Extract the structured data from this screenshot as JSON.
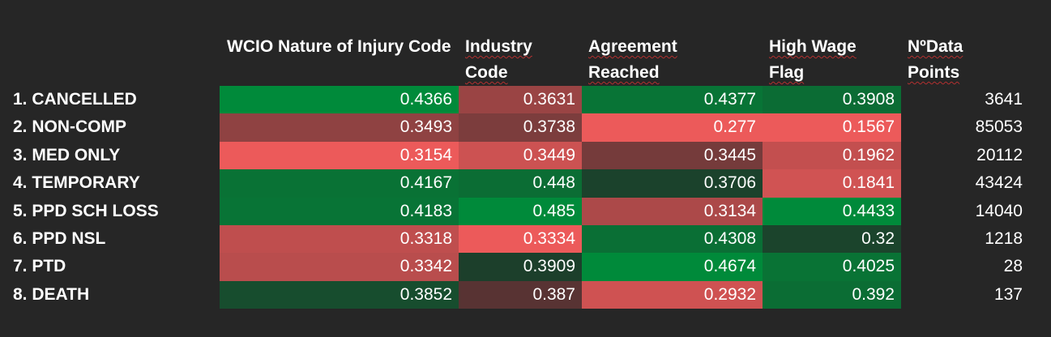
{
  "chart_data": {
    "type": "heatmap",
    "columns": [
      "WCIO Nature of Injury Code",
      "Industry Code",
      "Agreement Reached",
      "High Wage Flag",
      "NºData Points"
    ],
    "rows": [
      {
        "label": "1. CANCELLED",
        "values": [
          0.4366,
          0.3631,
          0.4377,
          0.3908
        ],
        "count": 3641
      },
      {
        "label": "2. NON-COMP",
        "values": [
          0.3493,
          0.3738,
          0.277,
          0.1567
        ],
        "count": 85053
      },
      {
        "label": "3. MED ONLY",
        "values": [
          0.3154,
          0.3449,
          0.3445,
          0.1962
        ],
        "count": 20112
      },
      {
        "label": "4. TEMPORARY",
        "values": [
          0.4167,
          0.448,
          0.3706,
          0.1841
        ],
        "count": 43424
      },
      {
        "label": "5. PPD SCH LOSS",
        "values": [
          0.4183,
          0.485,
          0.3134,
          0.4433
        ],
        "count": 14040
      },
      {
        "label": "6. PPD NSL",
        "values": [
          0.3318,
          0.3334,
          0.4308,
          0.32
        ],
        "count": 1218
      },
      {
        "label": "7. PTD",
        "values": [
          0.3342,
          0.3909,
          0.4674,
          0.4025
        ],
        "count": 28
      },
      {
        "label": "8. DEATH",
        "values": [
          0.3852,
          0.387,
          0.2932,
          0.392
        ],
        "count": 137
      }
    ],
    "colors": {
      "background": "#262626",
      "high": "#008a3a",
      "low": "#ec5a5a",
      "mid": "#262626"
    }
  }
}
